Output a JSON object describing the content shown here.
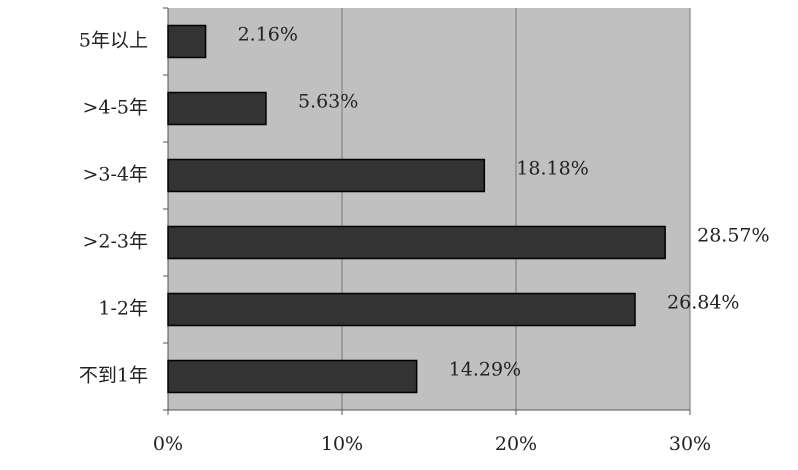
{
  "chart_data": {
    "type": "bar",
    "orientation": "horizontal",
    "categories": [
      "5年以上",
      ">4-5年",
      ">3-4年",
      ">2-3年",
      "1-2年",
      "不到1年"
    ],
    "values": [
      2.16,
      5.63,
      18.18,
      28.57,
      26.84,
      14.29
    ],
    "value_labels": [
      "2.16%",
      "5.63%",
      "18.18%",
      "28.57%",
      "26.84%",
      "14.29%"
    ],
    "color": "#333333",
    "xlim": [
      0,
      30
    ],
    "xticks": [
      {
        "value": 0,
        "label": "0%"
      },
      {
        "value": 10,
        "label": "10%"
      },
      {
        "value": 20,
        "label": "20%"
      },
      {
        "value": 30,
        "label": "30%"
      }
    ],
    "grid": true
  }
}
